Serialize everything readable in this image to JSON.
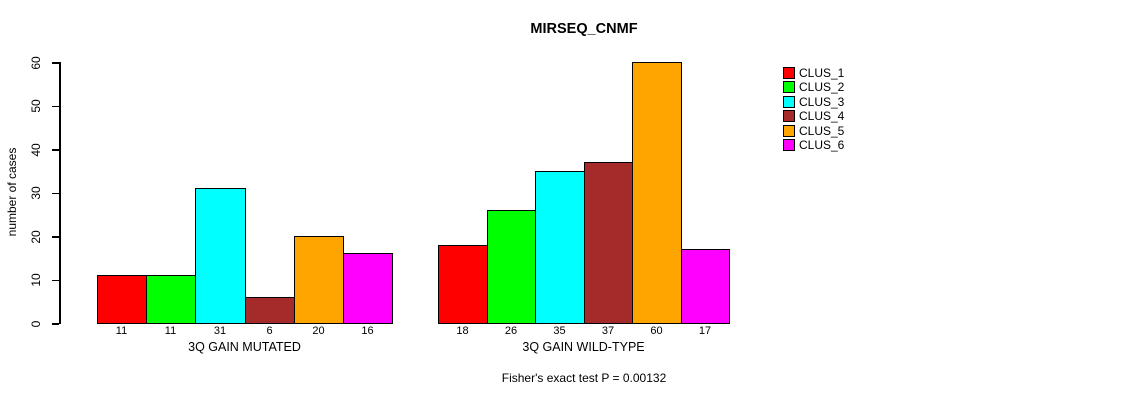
{
  "chart_data": {
    "type": "bar",
    "title": "MIRSEQ_CNMF",
    "xlabel": "",
    "ylabel": "number of cases",
    "ylim": [
      0,
      60
    ],
    "yticks": [
      0,
      10,
      20,
      30,
      40,
      50,
      60
    ],
    "grid": false,
    "categories": [
      "CLUS_1",
      "CLUS_2",
      "CLUS_3",
      "CLUS_4",
      "CLUS_5",
      "CLUS_6"
    ],
    "series_colors": [
      "#FF0000",
      "#00FF00",
      "#00FFFF",
      "#A52A2A",
      "#FFA500",
      "#FF00FF"
    ],
    "groups": [
      {
        "label": "3Q GAIN MUTATED",
        "values": [
          11,
          11,
          31,
          6,
          20,
          16
        ]
      },
      {
        "label": "3Q GAIN WILD-TYPE",
        "values": [
          18,
          26,
          35,
          37,
          60,
          17
        ]
      }
    ],
    "legend": {
      "position": "right",
      "entries": [
        {
          "label": "CLUS_1",
          "color": "#FF0000"
        },
        {
          "label": "CLUS_2",
          "color": "#00FF00"
        },
        {
          "label": "CLUS_3",
          "color": "#00FFFF"
        },
        {
          "label": "CLUS_4",
          "color": "#A52A2A"
        },
        {
          "label": "CLUS_5",
          "color": "#FFA500"
        },
        {
          "label": "CLUS_6",
          "color": "#FF00FF"
        }
      ]
    },
    "footnote": "Fisher's exact test P = 0.00132"
  }
}
